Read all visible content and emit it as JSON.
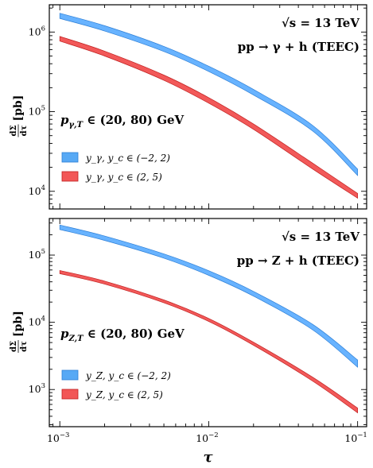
{
  "chart_data": [
    {
      "type": "area",
      "title": "",
      "annotations": [
        "√s = 13 TeV",
        "pp → γ + h (TEEC)",
        "p_{γ,T} ∈ (20, 80) GeV"
      ],
      "ylabel": "dΣ/dτ [pb]",
      "xlabel": "",
      "xscale": "log",
      "yscale": "log",
      "xlim": [
        0.00085,
        0.115
      ],
      "ylim": [
        6000,
        2200000
      ],
      "xticks": [
        0.001,
        0.01,
        0.1
      ],
      "yticks": [
        10000,
        100000,
        1000000
      ],
      "ytick_labels": [
        "10^4",
        "10^5",
        "10^6"
      ],
      "legend": "bottom-left",
      "series": [
        {
          "name": "y_γ, y_c ∈ (−2, 2)",
          "color": "#4da6ff",
          "x": [
            0.001,
            0.002,
            0.005,
            0.01,
            0.02,
            0.05,
            0.1
          ],
          "y_low": [
            1480000,
            1030000,
            570000,
            320000,
            162000,
            57000,
            15800
          ],
          "y_high": [
            1720000,
            1200000,
            660000,
            372000,
            190000,
            67000,
            19000
          ]
        },
        {
          "name": "y_γ, y_c ∈ (2, 5)",
          "color": "#f03c3c",
          "x": [
            0.001,
            0.002,
            0.005,
            0.01,
            0.02,
            0.05,
            0.1
          ],
          "y_low": [
            770000,
            500000,
            248000,
            128000,
            60000,
            19000,
            8200
          ],
          "y_high": [
            880000,
            575000,
            288000,
            150000,
            70000,
            22500,
            9400
          ]
        }
      ]
    },
    {
      "type": "area",
      "title": "",
      "annotations": [
        "√s = 13 TeV",
        "pp → Z + h (TEEC)",
        "p_{Z,T} ∈ (20, 80) GeV"
      ],
      "ylabel": "dΣ/dτ [pb]",
      "xlabel": "τ",
      "xscale": "log",
      "yscale": "log",
      "xlim": [
        0.00085,
        0.115
      ],
      "ylim": [
        280,
        350000
      ],
      "xticks": [
        0.001,
        0.01,
        0.1
      ],
      "xtick_labels": [
        "10^-3",
        "10^-2",
        "10^-1"
      ],
      "yticks": [
        1000,
        10000,
        100000
      ],
      "ytick_labels": [
        "10^3",
        "10^4",
        "10^5"
      ],
      "legend": "bottom-left",
      "series": [
        {
          "name": "y_Z, y_c ∈ (−2, 2)",
          "color": "#4da6ff",
          "x": [
            0.001,
            0.002,
            0.005,
            0.01,
            0.02,
            0.05,
            0.1
          ],
          "y_low": [
            240000,
            165000,
            90000,
            50000,
            24500,
            7700,
            2150
          ],
          "y_high": [
            280000,
            192000,
            104000,
            58500,
            28800,
            9300,
            2750
          ]
        },
        {
          "name": "y_Z, y_c ∈ (2, 5)",
          "color": "#f03c3c",
          "x": [
            0.001,
            0.002,
            0.005,
            0.01,
            0.02,
            0.05,
            0.1
          ],
          "y_low": [
            53000,
            37000,
            19500,
            10300,
            4550,
            1330,
            450
          ],
          "y_high": [
            59000,
            41000,
            21500,
            11400,
            5050,
            1520,
            530
          ]
        }
      ]
    }
  ]
}
